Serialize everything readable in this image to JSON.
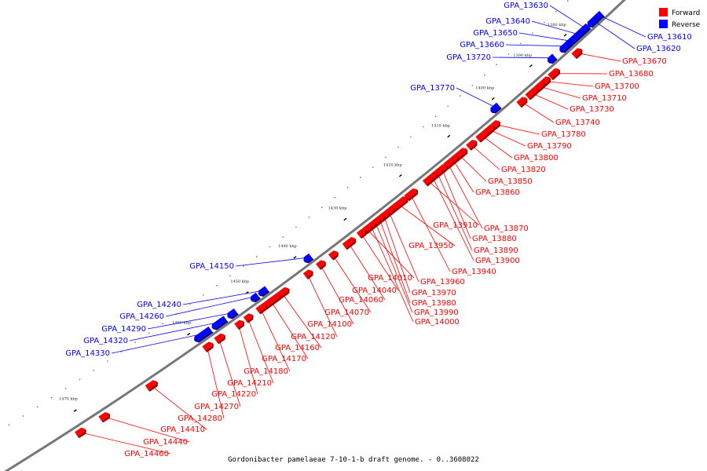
{
  "caption": "Gordonibacter pamelaeae 7-10-1-b draft genome. - 0..3608022",
  "legend": {
    "items": [
      {
        "label": "Forward",
        "color": "#ff0000"
      },
      {
        "label": "Reverse",
        "color": "#0000ff"
      }
    ]
  },
  "colors": {
    "forward": "#ff0000",
    "forward_dark": "#a00000",
    "reverse": "#0000ff",
    "reverse_dark": "#00008a",
    "backbone": "#777777"
  },
  "scale_labels": [
    "1380 kbp",
    "1390 kbp",
    "1400 kbp",
    "1410 kbp",
    "1420 kbp",
    "1430 kbp",
    "1440 kbp",
    "1450 kbp",
    "1460 kbp",
    "1470 kbp"
  ],
  "genes": [
    {
      "label": "GPA_13610",
      "strand": "reverse"
    },
    {
      "label": "GPA_13620",
      "strand": "reverse"
    },
    {
      "label": "GPA_13630",
      "strand": "reverse"
    },
    {
      "label": "GPA_13640",
      "strand": "reverse"
    },
    {
      "label": "GPA_13650",
      "strand": "reverse"
    },
    {
      "label": "GPA_13660",
      "strand": "reverse"
    },
    {
      "label": "GPA_13670",
      "strand": "forward"
    },
    {
      "label": "GPA_13680",
      "strand": "forward"
    },
    {
      "label": "GPA_13700",
      "strand": "forward"
    },
    {
      "label": "GPA_13710",
      "strand": "forward"
    },
    {
      "label": "GPA_13720",
      "strand": "reverse"
    },
    {
      "label": "GPA_13730",
      "strand": "forward"
    },
    {
      "label": "GPA_13740",
      "strand": "forward"
    },
    {
      "label": "GPA_13770",
      "strand": "reverse"
    },
    {
      "label": "GPA_13780",
      "strand": "forward"
    },
    {
      "label": "GPA_13790",
      "strand": "forward"
    },
    {
      "label": "GPA_13800",
      "strand": "forward"
    },
    {
      "label": "GPA_13820",
      "strand": "forward"
    },
    {
      "label": "GPA_13850",
      "strand": "forward"
    },
    {
      "label": "GPA_13860",
      "strand": "forward"
    },
    {
      "label": "GPA_13870",
      "strand": "forward"
    },
    {
      "label": "GPA_13880",
      "strand": "forward"
    },
    {
      "label": "GPA_13890",
      "strand": "forward"
    },
    {
      "label": "GPA_13900",
      "strand": "forward"
    },
    {
      "label": "GPA_13910",
      "strand": "forward"
    },
    {
      "label": "GPA_13940",
      "strand": "forward"
    },
    {
      "label": "GPA_13950",
      "strand": "forward"
    },
    {
      "label": "GPA_13960",
      "strand": "forward"
    },
    {
      "label": "GPA_13970",
      "strand": "forward"
    },
    {
      "label": "GPA_13980",
      "strand": "forward"
    },
    {
      "label": "GPA_13990",
      "strand": "forward"
    },
    {
      "label": "GPA_14000",
      "strand": "forward"
    },
    {
      "label": "GPA_14010",
      "strand": "forward"
    },
    {
      "label": "GPA_14040",
      "strand": "forward"
    },
    {
      "label": "GPA_14060",
      "strand": "forward"
    },
    {
      "label": "GPA_14070",
      "strand": "forward"
    },
    {
      "label": "GPA_14100",
      "strand": "forward"
    },
    {
      "label": "GPA_14120",
      "strand": "forward"
    },
    {
      "label": "GPA_14150",
      "strand": "reverse"
    },
    {
      "label": "GPA_14160",
      "strand": "forward"
    },
    {
      "label": "GPA_14170",
      "strand": "forward"
    },
    {
      "label": "GPA_14180",
      "strand": "forward"
    },
    {
      "label": "GPA_14210",
      "strand": "forward"
    },
    {
      "label": "GPA_14220",
      "strand": "forward"
    },
    {
      "label": "GPA_14240",
      "strand": "reverse"
    },
    {
      "label": "GPA_14260",
      "strand": "reverse"
    },
    {
      "label": "GPA_14270",
      "strand": "forward"
    },
    {
      "label": "GPA_14280",
      "strand": "forward"
    },
    {
      "label": "GPA_14290",
      "strand": "reverse"
    },
    {
      "label": "GPA_14320",
      "strand": "reverse"
    },
    {
      "label": "GPA_14330",
      "strand": "reverse"
    },
    {
      "label": "GPA_14410",
      "strand": "forward"
    },
    {
      "label": "GPA_14440",
      "strand": "forward"
    },
    {
      "label": "GPA_14460",
      "strand": "forward"
    }
  ]
}
